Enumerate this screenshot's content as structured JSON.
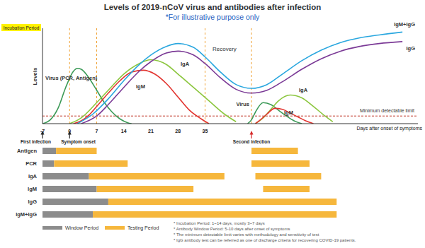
{
  "chart_data": {
    "type": "line",
    "title": "Levels of 2019-nCoV virus and antibodies after infection",
    "subtitle": "*For illustrative purpose only",
    "period_label": "Incubation Period",
    "x_label": "Days after onset of symptoms",
    "y_label": "Levels",
    "xlim": [
      -7,
      90
    ],
    "xticks": [
      -7,
      0,
      7,
      14,
      21,
      28,
      35
    ],
    "ylim": [
      0,
      100
    ],
    "tick_labels": "x",
    "series": [
      {
        "name": "Virus (PCR, Antigen)",
        "color": "#3b9a57",
        "x": [
          -7,
          -5,
          -3,
          -1,
          1,
          2,
          3,
          5,
          7,
          9,
          11,
          13,
          15,
          16,
          30,
          46,
          47,
          48,
          50,
          52,
          54,
          56,
          58,
          60
        ],
        "values": [
          0,
          4,
          16,
          38,
          55,
          58,
          57,
          48,
          35,
          22,
          12,
          5,
          1,
          0,
          null,
          0,
          4,
          12,
          22,
          20,
          14,
          8,
          3,
          0
        ]
      },
      {
        "name": "IgA",
        "color": "#8cc63f",
        "x": [
          0,
          3,
          7,
          10,
          14,
          18,
          21,
          25,
          28,
          32,
          36,
          40,
          43,
          46,
          48,
          50,
          52,
          54,
          57,
          60,
          63,
          66,
          68
        ],
        "values": [
          0,
          6,
          22,
          35,
          52,
          63,
          67,
          62,
          52,
          38,
          24,
          10,
          2,
          null,
          0,
          6,
          15,
          24,
          30,
          27,
          18,
          8,
          2
        ]
      },
      {
        "name": "IgM",
        "color": "#e2342f",
        "x": [
          1,
          3,
          5,
          7,
          10,
          13,
          16,
          19,
          22,
          25,
          28,
          31,
          34,
          36,
          42,
          48,
          49,
          51,
          53,
          55,
          57,
          59,
          61,
          63
        ],
        "values": [
          0,
          3,
          9,
          18,
          32,
          45,
          54,
          56,
          52,
          42,
          28,
          14,
          5,
          0,
          null,
          0,
          3,
          10,
          16,
          15,
          11,
          7,
          3,
          0
        ]
      },
      {
        "name": "IgG",
        "color": "#7b3a96",
        "x": [
          3,
          7,
          10,
          14,
          18,
          21,
          25,
          28,
          32,
          35,
          39,
          43,
          47,
          51,
          55,
          60,
          65,
          70,
          75,
          80,
          86
        ],
        "values": [
          0,
          8,
          20,
          38,
          55,
          65,
          74,
          76,
          72,
          63,
          48,
          36,
          32,
          35,
          44,
          57,
          68,
          76,
          81,
          84,
          86
        ]
      },
      {
        "name": "IgM+IgG",
        "color": "#2aa7df",
        "x": [
          2,
          6,
          10,
          14,
          18,
          21,
          25,
          28,
          32,
          35,
          39,
          43,
          47,
          51,
          55,
          60,
          65,
          70,
          75,
          80,
          86
        ],
        "values": [
          0,
          10,
          26,
          45,
          62,
          72,
          81,
          84,
          80,
          70,
          54,
          41,
          37,
          41,
          52,
          66,
          77,
          85,
          90,
          93,
          96
        ]
      }
    ],
    "min_detectable_limit": {
      "label": "Minimum detectable limit",
      "value": 8
    },
    "phase_lines": [
      0,
      7,
      35,
      47
    ],
    "events": [
      {
        "label": "First infection",
        "x": -7
      },
      {
        "label": "Symptom onset",
        "x": 0
      },
      {
        "label": "Second infection",
        "x": 47
      }
    ],
    "annotations": [
      "Recovery",
      "Virus",
      "IgA",
      "IgM"
    ],
    "timeline": {
      "type": "bar",
      "orientation": "horizontal",
      "tick_labels": "y",
      "categories": [
        "Antigen",
        "PCR",
        "IgA",
        "IgM",
        "IgG",
        "IgM+IgG"
      ],
      "series": [
        {
          "name": "Window Period",
          "color": "#8c8c8c",
          "ranges": [
            [
              [
                -7,
                -3.5
              ]
            ],
            [
              [
                -7,
                -4
              ]
            ],
            [
              [
                -7,
                5
              ]
            ],
            [
              [
                -7,
                7
              ]
            ],
            [
              [
                -7,
                10
              ]
            ],
            [
              [
                -7,
                6
              ]
            ]
          ]
        },
        {
          "name": "Testing Period",
          "color": "#f6b73c",
          "ranges": [
            [
              [
                -3.5,
                7
              ],
              [
                47,
                59
              ]
            ],
            [
              [
                -4,
                15
              ],
              [
                47,
                62
              ]
            ],
            [
              [
                5,
                40
              ],
              [
                48,
                65
              ]
            ],
            [
              [
                7,
                32
              ],
              [
                50,
                62
              ]
            ],
            [
              [
                10,
                69
              ]
            ],
            [
              [
                6,
                69
              ]
            ]
          ]
        }
      ],
      "notes": [
        "* Incubation Period: 1~14 days, mostly 3~7 days",
        "* Antibody Window Period: 5-10 days after onset of symptoms",
        "* The minimum detectable limit varies with methodology and sensitivity of test",
        "* IgG antibody test can be referred as one of discharge criteria for recovering COVID-19 patients."
      ]
    }
  }
}
